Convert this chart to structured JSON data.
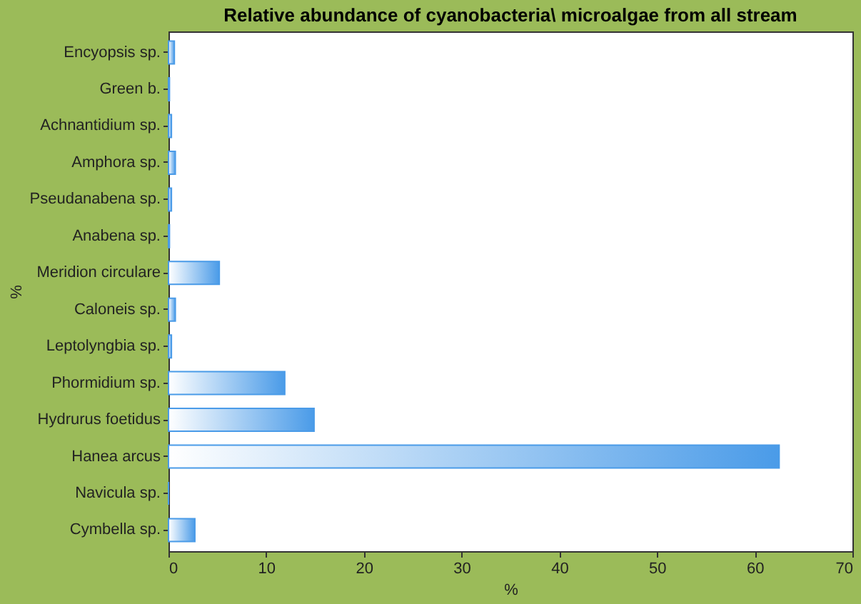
{
  "chart_data": {
    "type": "bar",
    "orientation": "horizontal",
    "title": "Relative abundance of cyanobacteria\\ microalgae from all stream",
    "xlabel": "%",
    "ylabel": "%",
    "categories": [
      "Encyopsis sp.",
      "Green b.",
      "Achnantidium sp.",
      "Amphora sp.",
      "Pseudanabena sp.",
      "Anabena sp.",
      "Meridion circulare",
      "Caloneis sp.",
      "Leptolyngbia sp.",
      "Phormidium sp.",
      "Hydrurus foetidus",
      "Hanea arcus",
      "Navicula sp.",
      "Cymbella sp."
    ],
    "values": [
      0.6,
      0.1,
      0.3,
      0.7,
      0.3,
      0.1,
      5.2,
      0.7,
      0.3,
      11.9,
      14.9,
      62.5,
      0,
      2.7
    ],
    "color": "#4a9be8",
    "xlim": [
      0,
      70
    ],
    "xticks": [
      0,
      10,
      20,
      30,
      40,
      50,
      60,
      70
    ],
    "grid": false
  }
}
